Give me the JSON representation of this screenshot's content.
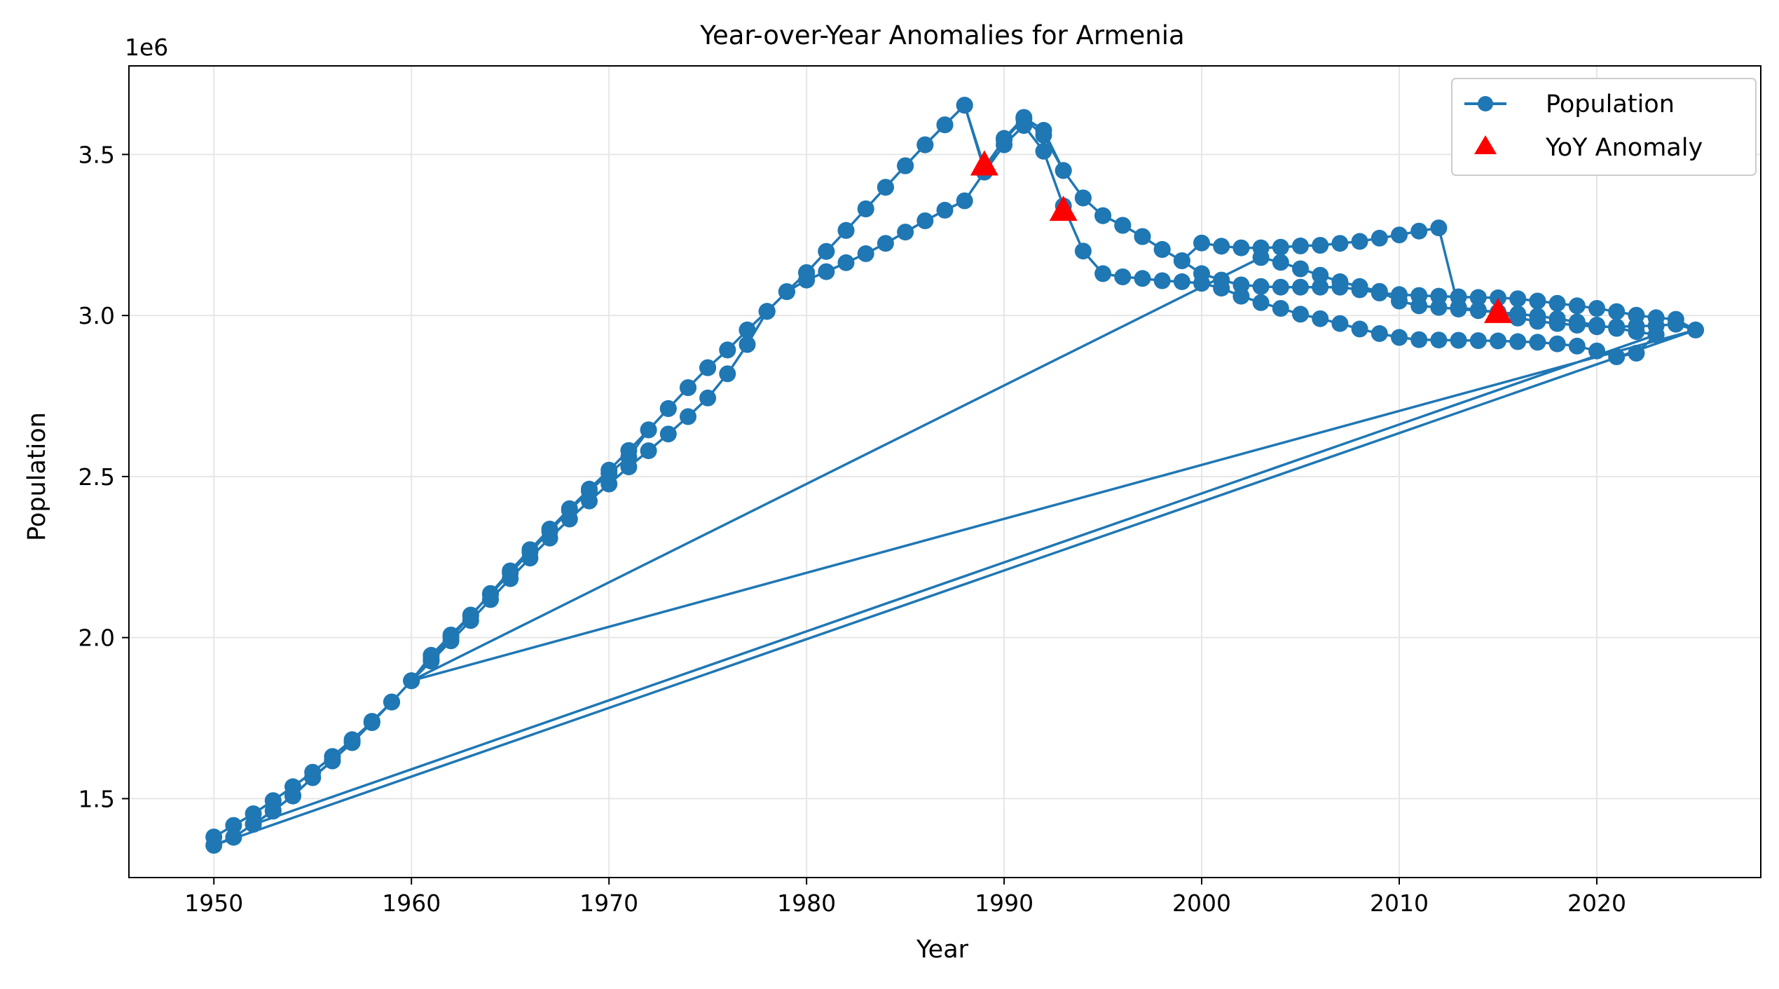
{
  "chart_data": {
    "type": "line",
    "title": "Year-over-Year Anomalies for Armenia",
    "xlabel": "Year",
    "ylabel": "Population",
    "y_offset_label": "1e6",
    "xlim": [
      1945.7,
      2028.3
    ],
    "ylim": [
      1.255,
      3.775
    ],
    "x_ticks": [
      1950,
      1960,
      1970,
      1980,
      1990,
      2000,
      2010,
      2020
    ],
    "x_tick_labels": [
      "1950",
      "1960",
      "1970",
      "1980",
      "1990",
      "2000",
      "2010",
      "2020"
    ],
    "y_ticks": [
      1.5,
      2.0,
      2.5,
      3.0,
      3.5
    ],
    "y_tick_labels": [
      "1.5",
      "2.0",
      "2.5",
      "3.0",
      "3.5"
    ],
    "grid": true,
    "legend_position": "top-right",
    "colors": {
      "line": "#1f77b4",
      "anomaly": "#ff0000",
      "grid": "#e6e6e6",
      "axes": "#000000"
    },
    "series": [
      {
        "name": "Population",
        "marker": "circle",
        "points": [
          [
            1950,
            1.381
          ],
          [
            1951,
            1.417
          ],
          [
            1952,
            1.453
          ],
          [
            1953,
            1.494
          ],
          [
            1954,
            1.537
          ],
          [
            1955,
            1.582
          ],
          [
            1956,
            1.631
          ],
          [
            1957,
            1.683
          ],
          [
            1958,
            1.738
          ],
          [
            1959,
            1.8
          ],
          [
            1960,
            1.866
          ],
          [
            1961,
            1.934
          ],
          [
            1962,
            2.001
          ],
          [
            1963,
            2.067
          ],
          [
            1964,
            2.137
          ],
          [
            1965,
            2.207
          ],
          [
            1966,
            2.273
          ],
          [
            1967,
            2.337
          ],
          [
            1968,
            2.4
          ],
          [
            1969,
            2.461
          ],
          [
            1970,
            2.52
          ],
          [
            1971,
            2.581
          ],
          [
            1972,
            2.645
          ],
          [
            1973,
            2.711
          ],
          [
            1974,
            2.776
          ],
          [
            1975,
            2.838
          ],
          [
            1976,
            2.893
          ],
          [
            1977,
            2.955
          ],
          [
            1978,
            3.013
          ],
          [
            1979,
            3.074
          ],
          [
            1980,
            3.133
          ],
          [
            1981,
            3.199
          ],
          [
            1982,
            3.264
          ],
          [
            1983,
            3.331
          ],
          [
            1984,
            3.398
          ],
          [
            1985,
            3.465
          ],
          [
            1986,
            3.53
          ],
          [
            1987,
            3.592
          ],
          [
            1988,
            3.653
          ],
          [
            1989,
            3.45
          ],
          [
            1990,
            3.55
          ],
          [
            1991,
            3.615
          ],
          [
            1992,
            3.575
          ],
          [
            1993,
            3.45
          ],
          [
            1994,
            3.365
          ],
          [
            1995,
            3.31
          ],
          [
            1996,
            3.28
          ],
          [
            1997,
            3.245
          ],
          [
            1998,
            3.205
          ],
          [
            1999,
            3.17
          ],
          [
            2000,
            3.225
          ],
          [
            2001,
            3.215
          ],
          [
            2002,
            3.21
          ],
          [
            2003,
            3.21
          ],
          [
            2004,
            3.212
          ],
          [
            2005,
            3.216
          ],
          [
            2006,
            3.218
          ],
          [
            2007,
            3.224
          ],
          [
            2008,
            3.23
          ],
          [
            2009,
            3.24
          ],
          [
            2010,
            3.25
          ],
          [
            2011,
            3.262
          ],
          [
            2012,
            3.272
          ],
          [
            2013,
            3.025
          ],
          [
            2014,
            3.017
          ],
          [
            2015,
            3.01
          ],
          [
            2016,
            2.992
          ],
          [
            2017,
            2.982
          ],
          [
            2018,
            2.975
          ],
          [
            2019,
            2.97
          ],
          [
            2020,
            2.965
          ],
          [
            2021,
            2.965
          ],
          [
            2022,
            2.967
          ],
          [
            2023,
            2.968
          ],
          [
            2024,
            2.973
          ],
          [
            2025,
            2.955
          ],
          [
            1950,
            1.355
          ],
          [
            1951,
            1.38
          ],
          [
            1952,
            1.421
          ],
          [
            1953,
            1.461
          ],
          [
            1954,
            1.51
          ],
          [
            1955,
            1.565
          ],
          [
            1956,
            1.619
          ],
          [
            1957,
            1.674
          ],
          [
            1958,
            1.736
          ],
          [
            1959,
            1.8
          ],
          [
            1960,
            1.866
          ],
          [
            1961,
            1.927
          ],
          [
            1962,
            1.99
          ],
          [
            1963,
            2.053
          ],
          [
            1964,
            2.118
          ],
          [
            1965,
            2.183
          ],
          [
            1966,
            2.247
          ],
          [
            1967,
            2.309
          ],
          [
            1968,
            2.368
          ],
          [
            1969,
            2.424
          ],
          [
            1970,
            2.477
          ],
          [
            1971,
            2.53
          ],
          [
            1972,
            2.58
          ],
          [
            1973,
            2.632
          ],
          [
            1974,
            2.686
          ],
          [
            1975,
            2.744
          ],
          [
            1976,
            2.819
          ],
          [
            1977,
            2.91
          ],
          [
            1978,
            3.013
          ],
          [
            1979,
            3.074
          ],
          [
            1980,
            3.11
          ],
          [
            1981,
            3.136
          ],
          [
            1982,
            3.164
          ],
          [
            1983,
            3.192
          ],
          [
            1984,
            3.224
          ],
          [
            1985,
            3.259
          ],
          [
            1986,
            3.294
          ],
          [
            1987,
            3.327
          ],
          [
            1988,
            3.356
          ],
          [
            1989,
            3.445
          ],
          [
            1990,
            3.53
          ],
          [
            1991,
            3.59
          ],
          [
            1992,
            3.51
          ],
          [
            1993,
            3.34
          ],
          [
            1994,
            3.2
          ],
          [
            1995,
            3.13
          ],
          [
            1996,
            3.12
          ],
          [
            1997,
            3.115
          ],
          [
            1998,
            3.108
          ],
          [
            1999,
            3.105
          ],
          [
            2000,
            3.1
          ],
          [
            2001,
            3.085
          ],
          [
            2002,
            3.06
          ],
          [
            2003,
            3.04
          ],
          [
            2004,
            3.022
          ],
          [
            2005,
            3.004
          ],
          [
            2006,
            2.99
          ],
          [
            2007,
            2.975
          ],
          [
            2008,
            2.958
          ],
          [
            2009,
            2.944
          ],
          [
            2010,
            2.932
          ],
          [
            2011,
            2.925
          ],
          [
            2012,
            2.924
          ],
          [
            2013,
            2.923
          ],
          [
            2014,
            2.922
          ],
          [
            2015,
            2.921
          ],
          [
            2016,
            2.919
          ],
          [
            2017,
            2.917
          ],
          [
            2018,
            2.912
          ],
          [
            2019,
            2.905
          ],
          [
            2020,
            2.89
          ],
          [
            2021,
            2.872
          ],
          [
            2022,
            2.883
          ],
          [
            2023,
            2.94
          ],
          [
            1952,
            1.42
          ],
          [
            1953,
            1.463
          ],
          [
            1954,
            1.508
          ],
          [
            1955,
            1.566
          ],
          [
            1956,
            1.617
          ],
          [
            1957,
            1.677
          ],
          [
            1958,
            1.74
          ],
          [
            1959,
            1.8
          ],
          [
            1960,
            1.866
          ],
          [
            1961,
            1.945
          ],
          [
            1962,
            2.008
          ],
          [
            1963,
            2.07
          ],
          [
            1964,
            2.134
          ],
          [
            1965,
            2.2
          ],
          [
            1966,
            2.265
          ],
          [
            1967,
            2.33
          ],
          [
            1968,
            2.395
          ],
          [
            1969,
            2.455
          ],
          [
            1970,
            2.51
          ],
          [
            1971,
            2.56
          ],
          [
            1972,
            2.645
          ],
          [
            1973,
            2.711
          ],
          [
            1974,
            2.776
          ],
          [
            1975,
            2.838
          ],
          [
            1976,
            2.893
          ],
          [
            1977,
            2.955
          ],
          [
            1978,
            3.013
          ],
          [
            1979,
            3.074
          ],
          [
            1980,
            3.133
          ],
          [
            1981,
            3.199
          ],
          [
            1982,
            3.264
          ],
          [
            1983,
            3.331
          ],
          [
            1984,
            3.398
          ],
          [
            1985,
            3.465
          ],
          [
            1986,
            3.53
          ],
          [
            1987,
            3.592
          ],
          [
            1988,
            3.653
          ],
          [
            1989,
            3.46
          ],
          [
            1990,
            3.545
          ],
          [
            1991,
            3.61
          ],
          [
            1992,
            3.56
          ],
          [
            1993,
            3.45
          ],
          [
            1994,
            3.365
          ],
          [
            1995,
            3.31
          ],
          [
            1996,
            3.28
          ],
          [
            1997,
            3.245
          ],
          [
            1998,
            3.205
          ],
          [
            1999,
            3.17
          ],
          [
            2000,
            3.13
          ],
          [
            2001,
            3.11
          ],
          [
            2002,
            3.095
          ],
          [
            2003,
            3.09
          ],
          [
            2004,
            3.088
          ],
          [
            2005,
            3.088
          ],
          [
            2006,
            3.088
          ],
          [
            2007,
            3.088
          ],
          [
            2008,
            3.08
          ],
          [
            2009,
            3.07
          ],
          [
            2010,
            3.065
          ],
          [
            2011,
            3.062
          ],
          [
            2012,
            3.06
          ],
          [
            2013,
            3.058
          ],
          [
            2014,
            3.056
          ],
          [
            2015,
            3.055
          ],
          [
            2016,
            3.052
          ],
          [
            2017,
            3.045
          ],
          [
            2018,
            3.038
          ],
          [
            2019,
            3.03
          ],
          [
            2020,
            3.022
          ],
          [
            2021,
            3.012
          ],
          [
            2022,
            3.001
          ],
          [
            2023,
            2.993
          ],
          [
            2024,
            2.988
          ],
          [
            2025,
            2.955
          ],
          [
            1960,
            1.866
          ],
          [
            2003,
            3.18
          ],
          [
            2004,
            3.165
          ],
          [
            2005,
            3.145
          ],
          [
            2006,
            3.125
          ],
          [
            2007,
            3.105
          ],
          [
            2008,
            3.09
          ],
          [
            2009,
            3.075
          ],
          [
            2010,
            3.045
          ],
          [
            2011,
            3.03
          ],
          [
            2012,
            3.025
          ],
          [
            2013,
            3.02
          ],
          [
            2014,
            3.015
          ],
          [
            2015,
            3.01
          ],
          [
            2016,
            3.005
          ],
          [
            2017,
            2.998
          ],
          [
            2018,
            2.99
          ],
          [
            2019,
            2.98
          ],
          [
            2020,
            2.97
          ],
          [
            2021,
            2.96
          ],
          [
            2022,
            2.95
          ],
          [
            2023,
            2.94
          ]
        ]
      },
      {
        "name": "YoY Anomaly",
        "marker": "triangle",
        "points": [
          [
            1989,
            3.466
          ],
          [
            1993,
            3.325
          ],
          [
            2015,
            3.008
          ]
        ]
      }
    ]
  }
}
